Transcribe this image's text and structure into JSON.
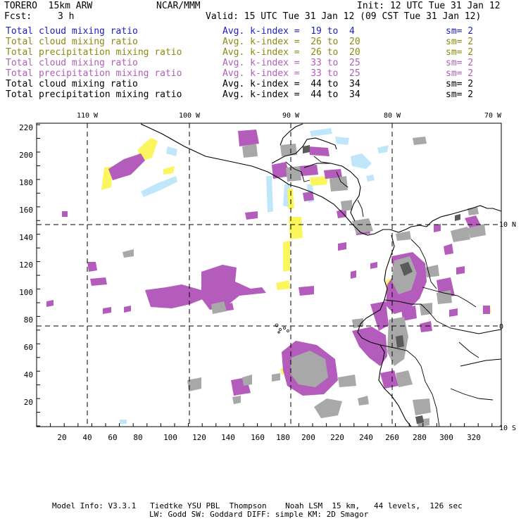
{
  "header": {
    "title": "TORERO  15km ARW",
    "org": "NCAR/MMM",
    "init": "Init: 12 UTC Tue 31 Jan 12",
    "fcst_label": "Fcst:",
    "fcst_value": "3 h",
    "valid": "Valid: 15 UTC Tue 31 Jan 12 (09 CST Tue 31 Jan 12)"
  },
  "legend": [
    {
      "field": "Total cloud mixing ratio",
      "kindex": "Avg. k-index =  19 to  4",
      "sm": "sm= 2",
      "color": "#2020c0"
    },
    {
      "field": "Total cloud mixing ratio",
      "kindex": "Avg. k-index =  26 to  20",
      "sm": "sm= 2",
      "color": "#8c8a10"
    },
    {
      "field": "Total precipitation mixing ratio",
      "kindex": "Avg. k-index =  26 to  20",
      "sm": "sm= 2",
      "color": "#8c8a10"
    },
    {
      "field": "Total cloud mixing ratio",
      "kindex": "Avg. k-index =  33 to  25",
      "sm": "sm= 2",
      "color": "#b060b8"
    },
    {
      "field": "Total precipitation mixing ratio",
      "kindex": "Avg. k-index =  33 to  25",
      "sm": "sm= 2",
      "color": "#b060b8"
    },
    {
      "field": "Total cloud mixing ratio",
      "kindex": "Avg. k-index =  44 to  34",
      "sm": "sm= 2",
      "color": "#000000"
    },
    {
      "field": "Total precipitation mixing ratio",
      "kindex": "Avg. k-index =  44 to  34",
      "sm": "sm= 2",
      "color": "#000000"
    }
  ],
  "map": {
    "lon_labels": [
      "110 W",
      "100 W",
      "90 W",
      "80 W",
      "70 W"
    ],
    "lat_labels": [
      "10 N",
      "0",
      "10 S"
    ],
    "y_ticks": [
      "220",
      "200",
      "180",
      "160",
      "140",
      "120",
      "100",
      "80",
      "60",
      "40",
      "20"
    ],
    "x_ticks": [
      "20",
      "40",
      "60",
      "80",
      "100",
      "120",
      "140",
      "160",
      "180",
      "200",
      "220",
      "240",
      "260",
      "280",
      "300",
      "320"
    ],
    "colors": {
      "light_blue": "#bfe6fa",
      "yellow": "#fbf55e",
      "magenta": "#b45cbc",
      "gray": "#a8a8a8",
      "dark_gray": "#5a5a5a"
    }
  },
  "footer": {
    "line1": "Model Info: V3.3.1   Tiedtke YSU PBL  Thompson    Noah LSM  15 km,   44 levels,  126 sec",
    "line2": "LW: Godd SW: Goddard DIFF: simple KM: 2D Smagor"
  }
}
